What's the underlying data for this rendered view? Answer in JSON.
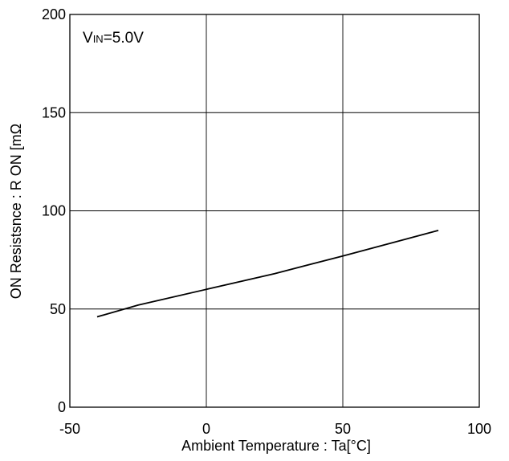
{
  "chart_data": {
    "type": "line",
    "title": "",
    "xlabel": "Ambient Temperature  : Ta[°C]",
    "ylabel": "ON Resistsnce : R ON [mΩ",
    "xlim": [
      -50,
      100
    ],
    "ylim": [
      0,
      200
    ],
    "xticks": [
      -50,
      0,
      50,
      100
    ],
    "yticks": [
      0,
      50,
      100,
      150,
      200
    ],
    "xtick_labels": [
      "-50",
      "0",
      "50",
      "100"
    ],
    "ytick_labels": [
      "0",
      "50",
      "100",
      "150",
      "200"
    ],
    "grid": true,
    "annotation": {
      "prefix": "V",
      "subscript": "IN",
      "suffix": "=5.0V"
    },
    "series": [
      {
        "x": [
          -40,
          -25,
          0,
          25,
          50,
          85
        ],
        "y": [
          46,
          52,
          60,
          68,
          77,
          90
        ]
      }
    ],
    "colors": {
      "line": "#000000",
      "grid": "#000000",
      "frame": "#000000"
    }
  }
}
